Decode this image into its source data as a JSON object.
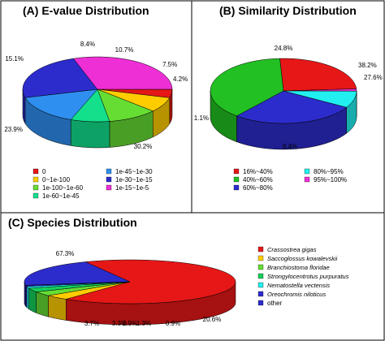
{
  "chart_data": [
    {
      "type": "pie",
      "title": "(A) E-value Distribution",
      "categories": [
        "0",
        "0~1e-100",
        "1e-100~1e-60",
        "1e-60~1e-45",
        "1e-45~1e-30",
        "1e-30~1e-15",
        "1e-15~1e-5"
      ],
      "values": [
        4.2,
        7.5,
        10.7,
        8.4,
        15.1,
        23.9,
        30.2
      ],
      "value_labels": [
        "4.2%",
        "7.5%",
        "10.7%",
        "8.4%",
        "15.1%",
        "23.9%",
        "30.2%"
      ],
      "colors": [
        "#e61717",
        "#ffcc00",
        "#66dd33",
        "#14e08c",
        "#2f8ff0",
        "#2c2ccc",
        "#ee2fd6"
      ],
      "legend_placement": "bottom"
    },
    {
      "type": "pie",
      "title": "(B) Similarity Distribution",
      "categories": [
        "16%~40%",
        "40%~60%",
        "60%~80%",
        "80%~95%",
        "95%~100%"
      ],
      "values": [
        24.8,
        38.2,
        27.6,
        8.4,
        1.1
      ],
      "value_labels": [
        "24.8%",
        "38.2%",
        "27.6%",
        "8.4%",
        "1.1%"
      ],
      "colors": [
        "#e61717",
        "#22c022",
        "#2c2ccc",
        "#22f0f0",
        "#ee2fd6"
      ],
      "legend_placement": "bottom"
    },
    {
      "type": "pie",
      "title": "(C) Species Distribution",
      "categories": [
        "Crassostrea gigas",
        "Saccoglossus kowalevskii",
        "Branchiostoma floridae",
        "Strongylocentrotus purpuratus",
        "Nematostella vectensis",
        "Oreochromis niloticus",
        "other"
      ],
      "values": [
        67.3,
        3.7,
        3.3,
        2.9,
        1.3,
        0.9,
        20.6
      ],
      "value_labels": [
        "67.3%",
        "3.7%",
        "3.3%",
        "2.9%",
        "1.3%",
        "0.9%",
        "20.6%"
      ],
      "colors": [
        "#e61717",
        "#ffcc00",
        "#66dd33",
        "#14d05a",
        "#22f0f0",
        "#2c2ccc",
        "#2c2ccc"
      ],
      "legend_placement": "right"
    }
  ]
}
